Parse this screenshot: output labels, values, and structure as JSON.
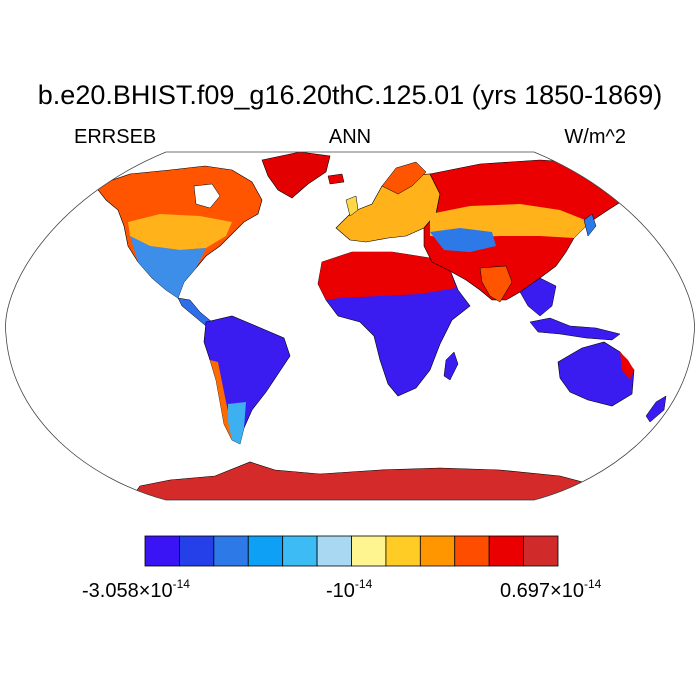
{
  "title": "b.e20.BHIST.f09_g16.20thC.125.01 (yrs 1850-1869)",
  "variable": "ERRSEB",
  "season": "ANN",
  "units": "W/m^2",
  "projection": "Robinson",
  "colorbar": {
    "colors": [
      "#3b14f5",
      "#2540e8",
      "#2e79e8",
      "#0da0f5",
      "#3cbbf5",
      "#a8d8f2",
      "#fff590",
      "#ffcb25",
      "#ff9600",
      "#ff4d00",
      "#ea0000",
      "#d12a2a"
    ],
    "labels": {
      "min_mantissa": "-3.058×10",
      "min_exp": "-14",
      "mid_mantissa": "-10",
      "mid_exp": "-14",
      "max_mantissa": "0.697×10",
      "max_exp": "-14"
    }
  },
  "map_colors": {
    "ocean": "#ffffff",
    "coast": "#000000"
  }
}
